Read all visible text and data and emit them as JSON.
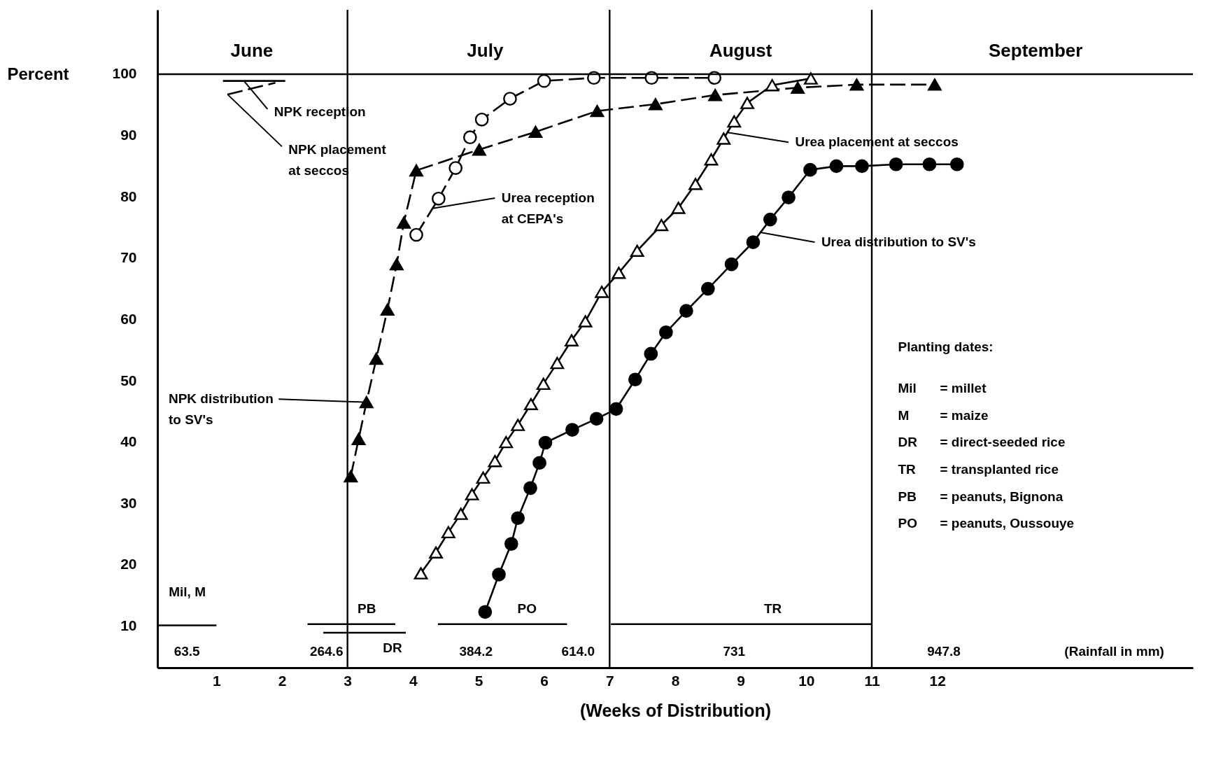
{
  "chart_data": {
    "type": "line",
    "xlabel": "(Weeks of Distribution)",
    "ylabel": "Percent",
    "xlim": [
      0.1,
      15.9
    ],
    "ylim": [
      3.2,
      110.5
    ],
    "xticks": [
      1,
      2,
      3,
      4,
      5,
      6,
      7,
      8,
      9,
      10,
      11,
      12
    ],
    "yticks": [
      10,
      20,
      30,
      40,
      50,
      60,
      70,
      80,
      90,
      100
    ],
    "grid": false,
    "series": [
      {
        "color": "#000000",
        "marker": "triangle",
        "line_style": "dashed",
        "x": [
          3.05,
          3.17,
          3.29,
          3.44,
          3.61,
          3.75,
          3.86,
          4.05,
          5.01,
          5.87,
          6.81,
          7.7,
          8.61,
          9.87,
          10.77,
          11.96
        ],
        "values": [
          34.4,
          40.5,
          46.5,
          53.6,
          61.6,
          69.0,
          75.8,
          84.3,
          87.7,
          90.6,
          94.0,
          95.1,
          96.6,
          97.8,
          98.3,
          98.3
        ]
      },
      {
        "color": "#000000",
        "marker": "circle",
        "line_style": "dashed",
        "x": [
          4.05,
          4.39,
          4.65,
          4.87,
          5.05,
          5.48,
          6.0,
          6.76,
          7.64,
          8.6
        ],
        "values": [
          73.8,
          79.7,
          84.7,
          89.7,
          92.6,
          96.0,
          98.9,
          99.4,
          99.4,
          99.4
        ]
      },
      {
        "color": "#000000",
        "marker": "triangle",
        "line_style": "solid",
        "x": [
          4.12,
          4.35,
          4.54,
          4.73,
          4.9,
          5.07,
          5.25,
          5.42,
          5.6,
          5.8,
          5.99,
          6.2,
          6.42,
          6.63,
          6.88,
          7.14,
          7.42,
          7.79,
          8.05,
          8.31,
          8.55,
          8.74,
          8.9,
          9.1,
          9.48,
          10.07
        ],
        "values": [
          18.6,
          22.0,
          25.3,
          28.3,
          31.5,
          34.2,
          36.9,
          40.0,
          42.8,
          46.2,
          49.5,
          52.9,
          56.6,
          59.7,
          64.5,
          67.6,
          71.2,
          75.4,
          78.2,
          82.1,
          86.1,
          89.5,
          92.3,
          95.3,
          98.2,
          99.3
        ]
      },
      {
        "color": "#000000",
        "marker": "circle",
        "line_style": "solid",
        "x": [
          5.1,
          5.31,
          5.5,
          5.6,
          5.79,
          5.93,
          6.02,
          6.43,
          6.8,
          7.1,
          7.39,
          7.63,
          7.86,
          8.17,
          8.5,
          8.86,
          9.19,
          9.45,
          9.73,
          10.06,
          10.46,
          10.85,
          11.37,
          11.88,
          12.3
        ],
        "values": [
          12.3,
          18.4,
          23.4,
          27.6,
          32.5,
          36.6,
          39.9,
          42.0,
          43.8,
          45.4,
          50.2,
          54.4,
          57.9,
          61.4,
          65.0,
          69.0,
          72.6,
          76.3,
          79.9,
          84.4,
          85.0,
          85.0,
          85.3,
          85.3,
          85.3
        ]
      },
      {
        "type": "line",
        "color": "#000000",
        "marker": "none",
        "line_style": "solid",
        "x": [
          1.1,
          2.05
        ],
        "values": [
          98.9,
          98.9
        ]
      },
      {
        "type": "line",
        "color": "#000000",
        "marker": "none",
        "line_style": "dashed",
        "x": [
          1.17,
          1.9
        ],
        "values": [
          96.7,
          98.6
        ]
      },
      {
        "type": "line",
        "name": "Mil, M",
        "color": "#000000",
        "marker": "none",
        "line_style": "solid",
        "x": [
          0.11,
          1.0
        ],
        "values": [
          10.1,
          10.1
        ]
      },
      {
        "type": "line",
        "name": "PB",
        "color": "#000000",
        "marker": "none",
        "line_style": "solid",
        "x": [
          2.39,
          3.73
        ],
        "values": [
          10.3,
          10.3
        ]
      },
      {
        "type": "line",
        "name": "DR",
        "color": "#000000",
        "marker": "none",
        "line_style": "solid",
        "x": [
          2.63,
          3.89
        ],
        "values": [
          8.9,
          8.9
        ]
      },
      {
        "type": "line",
        "name": "PO",
        "color": "#000000",
        "marker": "none",
        "line_style": "solid",
        "x": [
          4.38,
          6.35
        ],
        "values": [
          10.3,
          10.3
        ]
      },
      {
        "type": "line",
        "name": "TR",
        "color": "#000000",
        "marker": "none",
        "line_style": "solid",
        "x": [
          7.02,
          11.0
        ],
        "values": [
          10.3,
          10.3
        ]
      }
    ],
    "ref_lines": [
      {
        "axis": "y",
        "value": 100,
        "color": "#000000"
      },
      {
        "axis": "x",
        "value": 3,
        "color": "#000000"
      },
      {
        "axis": "x",
        "value": 7,
        "color": "#000000"
      },
      {
        "axis": "x",
        "value": 11,
        "color": "#000000"
      }
    ],
    "annotations": [
      {
        "text": "NPK reception",
        "x": 1.42,
        "y": 98.9
      },
      {
        "text": "NPK placement\nat seccos",
        "x": 1.17,
        "y": 96.7
      },
      {
        "text": "Urea reception\nat CEPA's",
        "x": 4.3,
        "y": 78.1
      },
      {
        "text": "Urea placement at seccos",
        "x": 8.8,
        "y": 90.5
      },
      {
        "text": "Urea distribution to SV's",
        "x": 9.3,
        "y": 74.2
      },
      {
        "text": "NPK distribution\nto SV's",
        "x": 3.29,
        "y": 46.5
      },
      "June",
      "July",
      "August",
      "September",
      "63.5",
      "264.6",
      "384.2",
      "614.0",
      "731",
      "947.8",
      "(Rainfall in mm)",
      "Planting dates:",
      "Mil = millet",
      "M = maize",
      "DR = direct-seeded rice",
      "TR = transplanted rice",
      "PB = peanuts, Bignona",
      "PO = peanuts, Oussouye"
    ]
  }
}
